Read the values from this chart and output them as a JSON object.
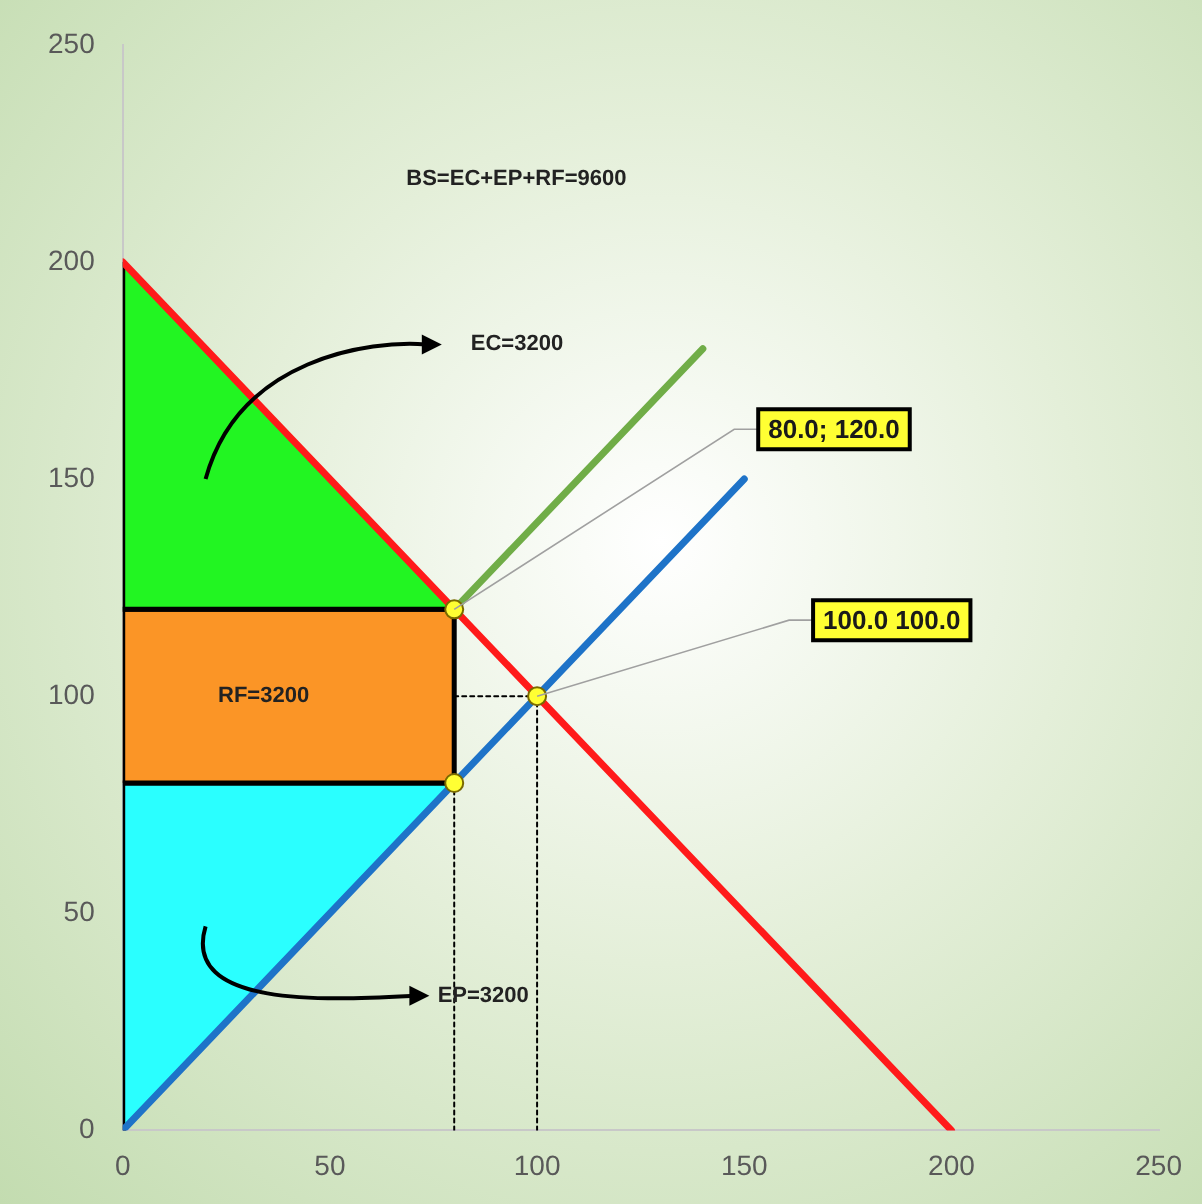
{
  "chart_data": {
    "type": "line",
    "xlim": [
      0,
      250
    ],
    "ylim": [
      0,
      250
    ],
    "xticks": [
      0,
      50,
      100,
      150,
      200,
      250
    ],
    "yticks": [
      0,
      50,
      100,
      150,
      200,
      250
    ],
    "grid": false,
    "legend": false,
    "marker": "none",
    "series": [
      {
        "type": "area",
        "color": "#22f522",
        "x": [
          0,
          80,
          0,
          0
        ],
        "values": [
          200,
          120,
          120,
          200
        ]
      },
      {
        "type": "area",
        "color": "#fb9526",
        "x": [
          0,
          80,
          80,
          0,
          0
        ],
        "values": [
          80,
          80,
          120,
          120,
          80
        ]
      },
      {
        "type": "area",
        "color": "#2affff",
        "x": [
          0,
          80,
          0,
          0
        ],
        "values": [
          0,
          80,
          80,
          0
        ]
      },
      {
        "type": "line",
        "color": "#ff1a1a",
        "x": [
          0,
          200
        ],
        "values": [
          200,
          0
        ]
      },
      {
        "type": "line",
        "color": "#1e73c8",
        "x": [
          0,
          150
        ],
        "values": [
          0,
          150
        ]
      },
      {
        "type": "line",
        "color": "#70ad47",
        "x": [
          80,
          140
        ],
        "values": [
          120,
          180
        ]
      },
      {
        "type": "line",
        "color": "#000000",
        "line_style": "dotted",
        "x": [
          80,
          80
        ],
        "values": [
          0,
          120
        ]
      },
      {
        "type": "line",
        "color": "#000000",
        "line_style": "dotted",
        "x": [
          100,
          100
        ],
        "values": [
          0,
          100
        ]
      },
      {
        "type": "line",
        "color": "#000000",
        "line_style": "dotted",
        "x": [
          80,
          100
        ],
        "values": [
          100,
          100
        ]
      },
      {
        "type": "scatter",
        "color": "#ffff33",
        "marker": "circle",
        "x": [
          80,
          100,
          80
        ],
        "values": [
          120,
          100,
          80
        ]
      }
    ],
    "annotations": [
      "BS=EC+EP+RF=9600",
      "EC=3200",
      "RF=3200",
      "EP=3200",
      {
        "text": "80.0; 120.0",
        "x": 80,
        "y": 120
      },
      {
        "text": "100.0 100.0",
        "x": 100,
        "y": 100
      }
    ]
  }
}
